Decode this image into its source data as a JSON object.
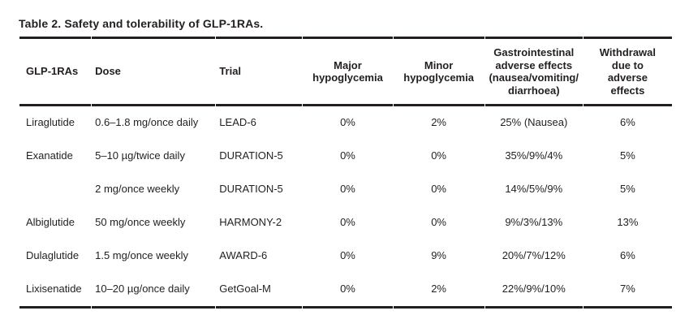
{
  "table": {
    "title": "Table 2. Safety and tolerability of GLP-1RAs.",
    "columns": [
      {
        "label": "GLP-1RAs",
        "align": "left"
      },
      {
        "label": "Dose",
        "align": "left"
      },
      {
        "label": "Trial",
        "align": "left"
      },
      {
        "label": "Major\nhypoglycemia",
        "align": "center"
      },
      {
        "label": "Minor\nhypoglycemia",
        "align": "center"
      },
      {
        "label": "Gastrointestinal\nadverse effects\n(nausea/vomiting/\ndiarrhoea)",
        "align": "center"
      },
      {
        "label": "Withdrawal\ndue to\nadverse\neffects",
        "align": "center"
      }
    ],
    "rows": [
      [
        "Liraglutide",
        "0.6–1.8 mg/once daily",
        "LEAD-6",
        "0%",
        "2%",
        "25% (Nausea)",
        "6%"
      ],
      [
        "Exanatide",
        "5–10 µg/twice daily",
        "DURATION-5",
        "0%",
        "0%",
        "35%/9%/4%",
        "5%"
      ],
      [
        "",
        "2 mg/once weekly",
        "DURATION-5",
        "0%",
        "0%",
        "14%/5%/9%",
        "5%"
      ],
      [
        "Albiglutide",
        "50 mg/once weekly",
        "HARMONY-2",
        "0%",
        "0%",
        "9%/3%/13%",
        "13%"
      ],
      [
        "Dulaglutide",
        "1.5 mg/once weekly",
        "AWARD-6",
        "0%",
        "9%",
        "20%/7%/12%",
        "6%"
      ],
      [
        "Lixisenatide",
        "10–20 µg/once daily",
        "GetGoal-M",
        "0%",
        "2%",
        "22%/9%/10%",
        "7%"
      ]
    ],
    "colors": {
      "text": "#231f20",
      "rule": "#231f20",
      "background": "#ffffff"
    }
  }
}
